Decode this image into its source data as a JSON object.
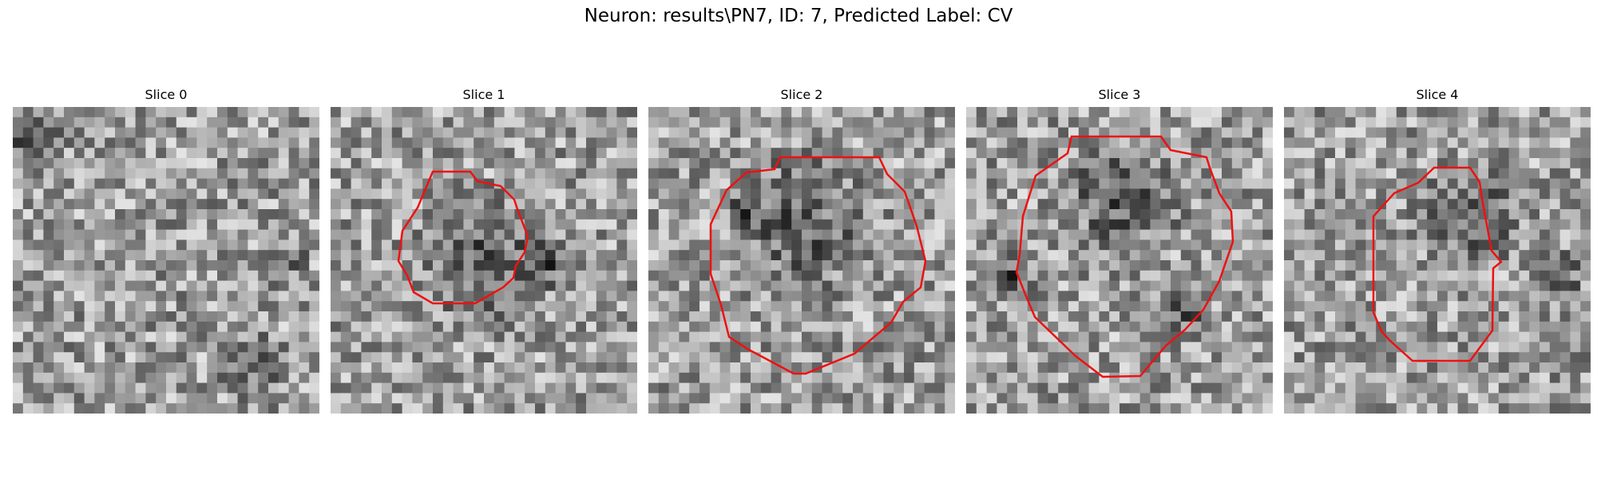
{
  "figure": {
    "suptitle": "Neuron: results\\PN7, ID: 7, Predicted Label: CV",
    "contour_color": "#ee1111",
    "colormap": "grayscale"
  },
  "panels": [
    {
      "title": "Slice 0",
      "has_contour": false,
      "dark_regions": [
        [
          0.05,
          0.12,
          0.14
        ],
        [
          0.88,
          0.5,
          0.1
        ],
        [
          0.78,
          0.84,
          0.14
        ]
      ]
    },
    {
      "title": "Slice 1",
      "has_contour": true,
      "dark_regions": [
        [
          0.5,
          0.5,
          0.28
        ],
        [
          0.7,
          0.52,
          0.1
        ]
      ]
    },
    {
      "title": "Slice 2",
      "has_contour": true,
      "dark_regions": [
        [
          0.5,
          0.38,
          0.3
        ],
        [
          0.32,
          0.35,
          0.08
        ]
      ]
    },
    {
      "title": "Slice 3",
      "has_contour": true,
      "dark_regions": [
        [
          0.5,
          0.3,
          0.25
        ],
        [
          0.15,
          0.55,
          0.12
        ],
        [
          0.72,
          0.66,
          0.1
        ]
      ]
    },
    {
      "title": "Slice 4",
      "has_contour": true,
      "dark_regions": [
        [
          0.6,
          0.35,
          0.22
        ],
        [
          0.9,
          0.55,
          0.1
        ]
      ]
    }
  ]
}
